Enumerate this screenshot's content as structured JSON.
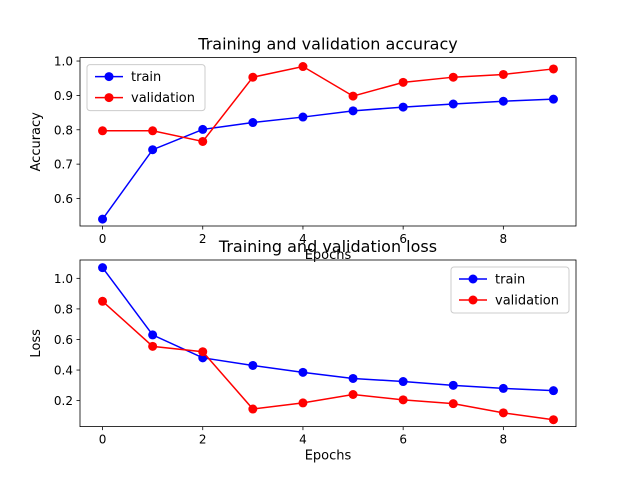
{
  "chart_data": [
    {
      "type": "line",
      "title": "Training and validation accuracy",
      "xlabel": "Epochs",
      "ylabel": "Accuracy",
      "x": [
        0,
        1,
        2,
        3,
        4,
        5,
        6,
        7,
        8,
        9
      ],
      "xlim": [
        -0.45,
        9.45
      ],
      "ylim": [
        0.52,
        1.01
      ],
      "xticks": [
        0,
        2,
        4,
        6,
        8
      ],
      "yticks": [
        0.6,
        0.7,
        0.8,
        0.9,
        1.0
      ],
      "ytick_labels": [
        "0.6",
        "0.7",
        "0.8",
        "0.9",
        "1.0"
      ],
      "legend": "upper left",
      "grid": false,
      "series": [
        {
          "name": "train",
          "color": "#0000ff",
          "marker": "circle",
          "values": [
            0.54,
            0.742,
            0.801,
            0.821,
            0.837,
            0.855,
            0.866,
            0.875,
            0.883,
            0.889
          ]
        },
        {
          "name": "validation",
          "color": "#ff0000",
          "marker": "circle",
          "values": [
            0.797,
            0.797,
            0.766,
            0.953,
            0.984,
            0.898,
            0.938,
            0.953,
            0.961,
            0.977
          ]
        }
      ]
    },
    {
      "type": "line",
      "title": "Training and validation loss",
      "xlabel": "Epochs",
      "ylabel": "Loss",
      "x": [
        0,
        1,
        2,
        3,
        4,
        5,
        6,
        7,
        8,
        9
      ],
      "xlim": [
        -0.45,
        9.45
      ],
      "ylim": [
        0.03,
        1.12
      ],
      "xticks": [
        0,
        2,
        4,
        6,
        8
      ],
      "yticks": [
        0.2,
        0.4,
        0.6,
        0.8,
        1.0
      ],
      "ytick_labels": [
        "0.2",
        "0.4",
        "0.6",
        "0.8",
        "1.0"
      ],
      "legend": "upper right",
      "grid": false,
      "series": [
        {
          "name": "train",
          "color": "#0000ff",
          "marker": "circle",
          "values": [
            1.07,
            0.63,
            0.48,
            0.43,
            0.385,
            0.345,
            0.325,
            0.3,
            0.28,
            0.265
          ]
        },
        {
          "name": "validation",
          "color": "#ff0000",
          "marker": "circle",
          "values": [
            0.85,
            0.555,
            0.52,
            0.145,
            0.185,
            0.24,
            0.205,
            0.18,
            0.12,
            0.075
          ]
        }
      ]
    }
  ]
}
